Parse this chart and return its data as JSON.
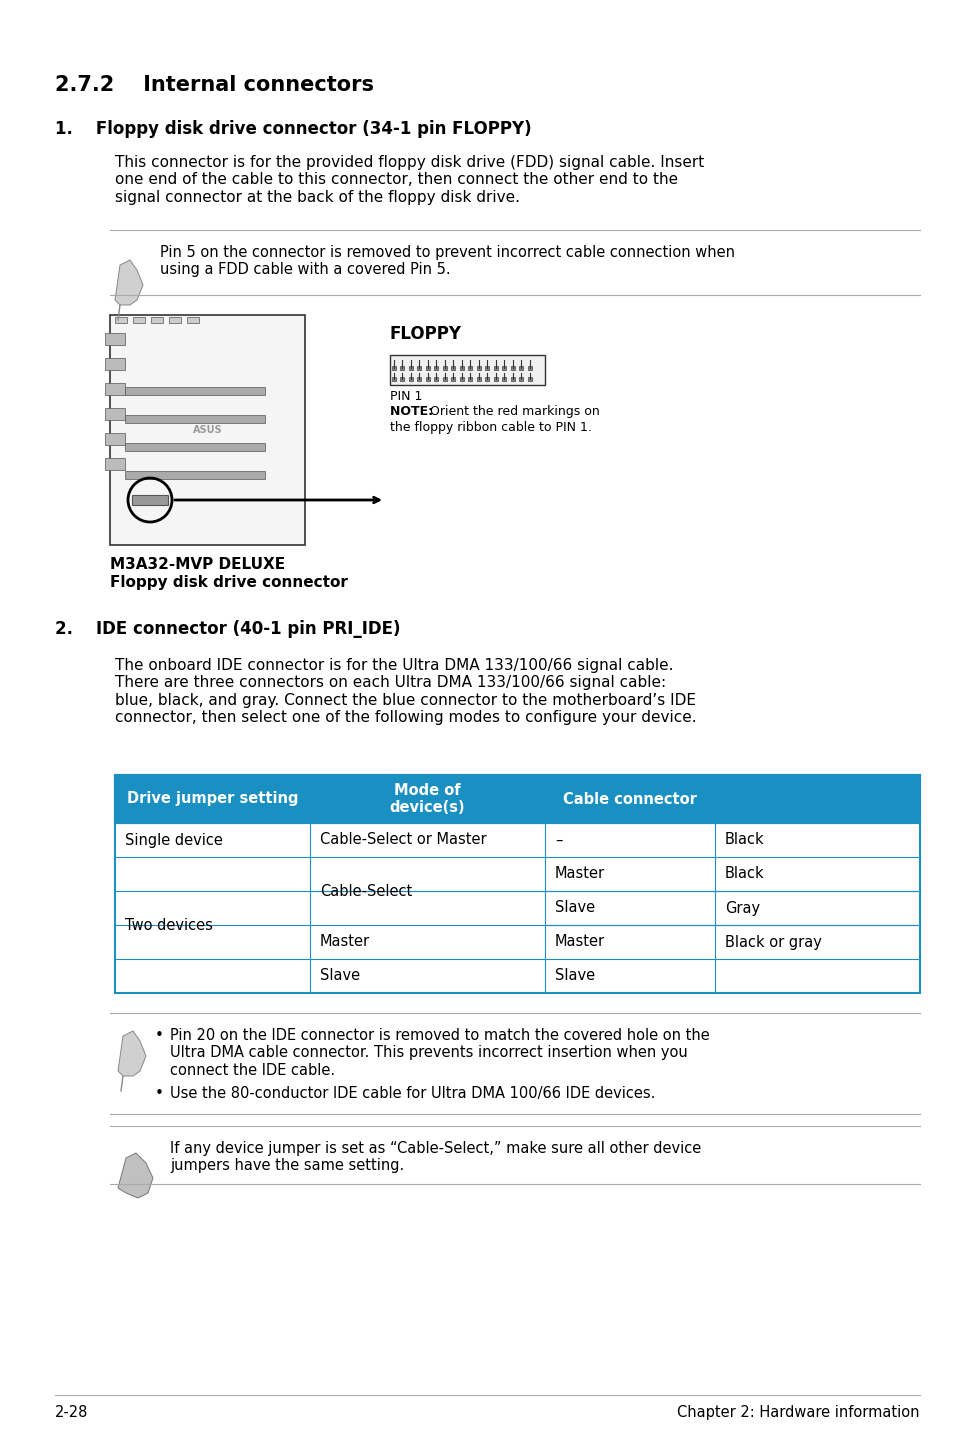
{
  "bg_color": "#ffffff",
  "section_title": "2.7.2    Internal connectors",
  "item1_title": "1.    Floppy disk drive connector (34-1 pin FLOPPY)",
  "item1_body": "This connector is for the provided floppy disk drive (FDD) signal cable. Insert\none end of the cable to this connector, then connect the other end to the\nsignal connector at the back of the floppy disk drive.",
  "note1_text": "Pin 5 on the connector is removed to prevent incorrect cable connection when\nusing a FDD cable with a covered Pin 5.",
  "floppy_label": "FLOPPY",
  "pin1_label": "PIN 1",
  "note_floppy": "NOTE: Orient the red markings on\nthe floppy ribbon cable to PIN 1.",
  "mb_label1": "M3A32-MVP DELUXE",
  "mb_label2": "Floppy disk drive connector",
  "item2_title": "2.    IDE connector (40-1 pin PRI_IDE)",
  "item2_body": "The onboard IDE connector is for the Ultra DMA 133/100/66 signal cable.\nThere are three connectors on each Ultra DMA 133/100/66 signal cable:\nblue, black, and gray. Connect the blue connector to the motherboard’s IDE\nconnector, then select one of the following modes to configure your device.",
  "table_header": [
    "Drive jumper setting",
    "Mode of\ndevice(s)",
    "Cable connector"
  ],
  "table_header_bg": "#1a8fc1",
  "table_header_color": "#ffffff",
  "table_rows": [
    [
      "Single device",
      "Cable-Select or Master",
      "–",
      "Black"
    ],
    [
      "Two devices",
      "Cable-Select",
      "Master",
      "Black"
    ],
    [
      "",
      "",
      "Slave",
      "Gray"
    ],
    [
      "",
      "Master",
      "Master",
      "Black or gray"
    ],
    [
      "",
      "Slave",
      "Slave",
      ""
    ]
  ],
  "note2_bullets": [
    "Pin 20 on the IDE connector is removed to match the covered hole on the\nUltra DMA cable connector. This prevents incorrect insertion when you\nconnect the IDE cable.",
    "Use the 80-conductor IDE cable for Ultra DMA 100/66 IDE devices."
  ],
  "warning_text": "If any device jumper is set as “Cable-Select,” make sure all other device\njumpers have the same setting.",
  "footer_left": "2-28",
  "footer_right": "Chapter 2: Hardware information",
  "line_color": "#cccccc",
  "border_color": "#1a8fc1"
}
